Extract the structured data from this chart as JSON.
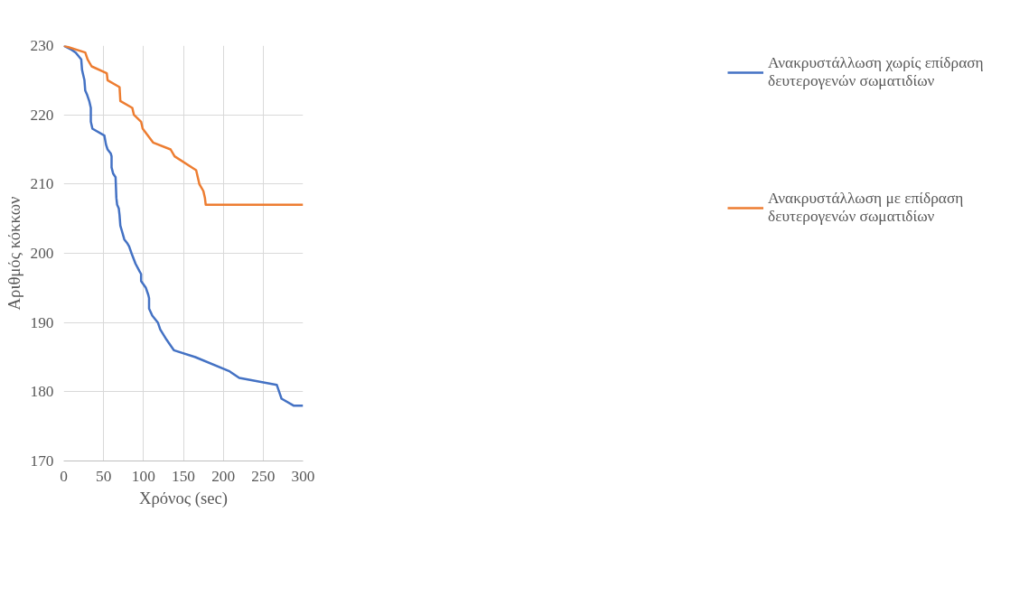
{
  "chart_data": {
    "type": "line",
    "xlabel": "Χρόνος (sec)",
    "ylabel": "Αριθμός κόκκων",
    "xlim": [
      0,
      300
    ],
    "xticks": [
      0,
      50,
      100,
      150,
      200,
      250,
      300
    ],
    "ylim": [
      170,
      230
    ],
    "yticks": [
      170,
      180,
      190,
      200,
      210,
      220,
      230
    ],
    "grid": true,
    "legend": "right",
    "series": [
      {
        "name": "Ανακρυστάλλωση χωρίς επίδραση δευτερογενών σωματιδίων",
        "color": "#4472c4",
        "x": [
          0,
          10,
          15,
          22,
          23,
          24,
          26,
          27,
          29,
          32,
          34,
          34,
          36,
          51,
          53,
          55,
          59,
          60,
          60,
          62,
          65,
          66,
          67,
          69,
          70,
          71,
          76,
          80,
          82,
          85,
          90,
          95,
          97,
          97,
          100,
          103,
          106,
          107,
          107,
          111,
          118,
          121,
          129,
          138,
          165,
          207,
          220,
          267,
          270,
          273,
          288,
          300
        ],
        "values": [
          230,
          229.4,
          229,
          228,
          226.5,
          226,
          225,
          223.5,
          223,
          222,
          221,
          219,
          218,
          217,
          215.7,
          215,
          214.4,
          214,
          212.4,
          211.5,
          211,
          208,
          207,
          206.5,
          205.5,
          204,
          202,
          201.4,
          201,
          200,
          198.5,
          197.4,
          197,
          196,
          195.5,
          195,
          194,
          193.5,
          192,
          191,
          190,
          189,
          187.5,
          186,
          185,
          183,
          182,
          181,
          180,
          179,
          178,
          178
        ]
      },
      {
        "name": "Ανακρυστάλλωση με επίδραση δευτερογενών σωματιδίων",
        "color": "#ed7d31",
        "x": [
          0,
          27,
          30,
          35,
          54,
          55,
          70,
          71,
          86,
          88,
          97,
          99,
          112,
          134,
          139,
          166,
          170,
          175,
          177,
          178,
          300
        ],
        "values": [
          230,
          229,
          228,
          227,
          226,
          225,
          224,
          222,
          221,
          220,
          219,
          218,
          216,
          215,
          214,
          212,
          210,
          209,
          208,
          207,
          207
        ]
      }
    ]
  }
}
